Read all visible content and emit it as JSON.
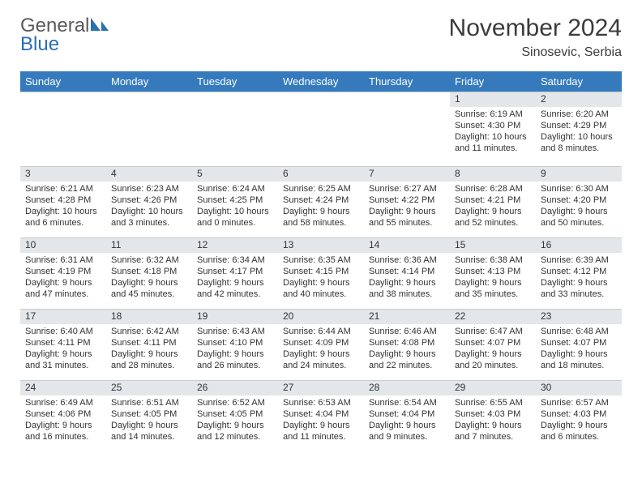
{
  "logo": {
    "text1": "General",
    "text2": "Blue"
  },
  "title": "November 2024",
  "subtitle": "Sinosevic, Serbia",
  "colors": {
    "header_bg": "#357abd",
    "header_text": "#ffffff",
    "daynum_bg": "#e4e7ea",
    "body_bg": "#ffffff",
    "text": "#333333",
    "logo_gray": "#5a5a5a",
    "logo_blue": "#2b6fb3"
  },
  "weekdays": [
    "Sunday",
    "Monday",
    "Tuesday",
    "Wednesday",
    "Thursday",
    "Friday",
    "Saturday"
  ],
  "weeks": [
    [
      null,
      null,
      null,
      null,
      null,
      {
        "n": "1",
        "sr": "Sunrise: 6:19 AM",
        "ss": "Sunset: 4:30 PM",
        "dl": "Daylight: 10 hours and 11 minutes."
      },
      {
        "n": "2",
        "sr": "Sunrise: 6:20 AM",
        "ss": "Sunset: 4:29 PM",
        "dl": "Daylight: 10 hours and 8 minutes."
      }
    ],
    [
      {
        "n": "3",
        "sr": "Sunrise: 6:21 AM",
        "ss": "Sunset: 4:28 PM",
        "dl": "Daylight: 10 hours and 6 minutes."
      },
      {
        "n": "4",
        "sr": "Sunrise: 6:23 AM",
        "ss": "Sunset: 4:26 PM",
        "dl": "Daylight: 10 hours and 3 minutes."
      },
      {
        "n": "5",
        "sr": "Sunrise: 6:24 AM",
        "ss": "Sunset: 4:25 PM",
        "dl": "Daylight: 10 hours and 0 minutes."
      },
      {
        "n": "6",
        "sr": "Sunrise: 6:25 AM",
        "ss": "Sunset: 4:24 PM",
        "dl": "Daylight: 9 hours and 58 minutes."
      },
      {
        "n": "7",
        "sr": "Sunrise: 6:27 AM",
        "ss": "Sunset: 4:22 PM",
        "dl": "Daylight: 9 hours and 55 minutes."
      },
      {
        "n": "8",
        "sr": "Sunrise: 6:28 AM",
        "ss": "Sunset: 4:21 PM",
        "dl": "Daylight: 9 hours and 52 minutes."
      },
      {
        "n": "9",
        "sr": "Sunrise: 6:30 AM",
        "ss": "Sunset: 4:20 PM",
        "dl": "Daylight: 9 hours and 50 minutes."
      }
    ],
    [
      {
        "n": "10",
        "sr": "Sunrise: 6:31 AM",
        "ss": "Sunset: 4:19 PM",
        "dl": "Daylight: 9 hours and 47 minutes."
      },
      {
        "n": "11",
        "sr": "Sunrise: 6:32 AM",
        "ss": "Sunset: 4:18 PM",
        "dl": "Daylight: 9 hours and 45 minutes."
      },
      {
        "n": "12",
        "sr": "Sunrise: 6:34 AM",
        "ss": "Sunset: 4:17 PM",
        "dl": "Daylight: 9 hours and 42 minutes."
      },
      {
        "n": "13",
        "sr": "Sunrise: 6:35 AM",
        "ss": "Sunset: 4:15 PM",
        "dl": "Daylight: 9 hours and 40 minutes."
      },
      {
        "n": "14",
        "sr": "Sunrise: 6:36 AM",
        "ss": "Sunset: 4:14 PM",
        "dl": "Daylight: 9 hours and 38 minutes."
      },
      {
        "n": "15",
        "sr": "Sunrise: 6:38 AM",
        "ss": "Sunset: 4:13 PM",
        "dl": "Daylight: 9 hours and 35 minutes."
      },
      {
        "n": "16",
        "sr": "Sunrise: 6:39 AM",
        "ss": "Sunset: 4:12 PM",
        "dl": "Daylight: 9 hours and 33 minutes."
      }
    ],
    [
      {
        "n": "17",
        "sr": "Sunrise: 6:40 AM",
        "ss": "Sunset: 4:11 PM",
        "dl": "Daylight: 9 hours and 31 minutes."
      },
      {
        "n": "18",
        "sr": "Sunrise: 6:42 AM",
        "ss": "Sunset: 4:11 PM",
        "dl": "Daylight: 9 hours and 28 minutes."
      },
      {
        "n": "19",
        "sr": "Sunrise: 6:43 AM",
        "ss": "Sunset: 4:10 PM",
        "dl": "Daylight: 9 hours and 26 minutes."
      },
      {
        "n": "20",
        "sr": "Sunrise: 6:44 AM",
        "ss": "Sunset: 4:09 PM",
        "dl": "Daylight: 9 hours and 24 minutes."
      },
      {
        "n": "21",
        "sr": "Sunrise: 6:46 AM",
        "ss": "Sunset: 4:08 PM",
        "dl": "Daylight: 9 hours and 22 minutes."
      },
      {
        "n": "22",
        "sr": "Sunrise: 6:47 AM",
        "ss": "Sunset: 4:07 PM",
        "dl": "Daylight: 9 hours and 20 minutes."
      },
      {
        "n": "23",
        "sr": "Sunrise: 6:48 AM",
        "ss": "Sunset: 4:07 PM",
        "dl": "Daylight: 9 hours and 18 minutes."
      }
    ],
    [
      {
        "n": "24",
        "sr": "Sunrise: 6:49 AM",
        "ss": "Sunset: 4:06 PM",
        "dl": "Daylight: 9 hours and 16 minutes."
      },
      {
        "n": "25",
        "sr": "Sunrise: 6:51 AM",
        "ss": "Sunset: 4:05 PM",
        "dl": "Daylight: 9 hours and 14 minutes."
      },
      {
        "n": "26",
        "sr": "Sunrise: 6:52 AM",
        "ss": "Sunset: 4:05 PM",
        "dl": "Daylight: 9 hours and 12 minutes."
      },
      {
        "n": "27",
        "sr": "Sunrise: 6:53 AM",
        "ss": "Sunset: 4:04 PM",
        "dl": "Daylight: 9 hours and 11 minutes."
      },
      {
        "n": "28",
        "sr": "Sunrise: 6:54 AM",
        "ss": "Sunset: 4:04 PM",
        "dl": "Daylight: 9 hours and 9 minutes."
      },
      {
        "n": "29",
        "sr": "Sunrise: 6:55 AM",
        "ss": "Sunset: 4:03 PM",
        "dl": "Daylight: 9 hours and 7 minutes."
      },
      {
        "n": "30",
        "sr": "Sunrise: 6:57 AM",
        "ss": "Sunset: 4:03 PM",
        "dl": "Daylight: 9 hours and 6 minutes."
      }
    ]
  ]
}
